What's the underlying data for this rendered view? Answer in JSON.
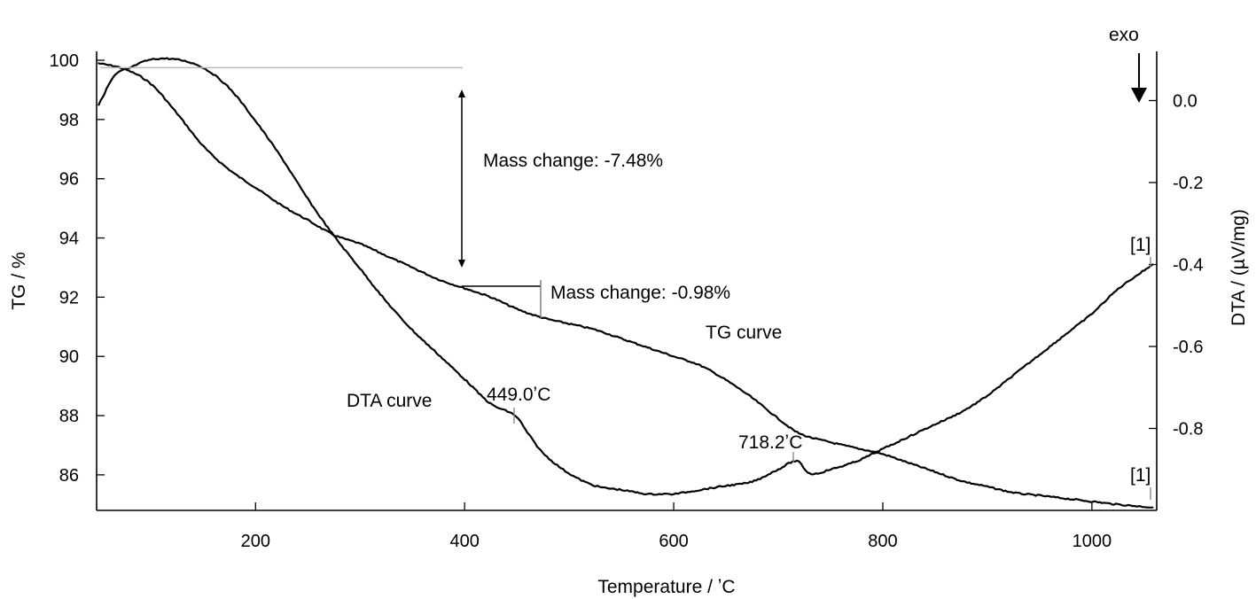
{
  "chart_data": {
    "type": "line",
    "title": "",
    "xlabel": "Temperature / ʼC",
    "ylabel": "TG / %",
    "y2label": "DTA / (µV/mg)",
    "xlim": [
      48,
      1062
    ],
    "ylim": [
      84.8,
      100.3
    ],
    "y2lim": [
      -1.0,
      0.12
    ],
    "x_ticks": [
      200,
      400,
      600,
      800,
      1000
    ],
    "y_ticks": [
      86,
      88,
      90,
      92,
      94,
      96,
      98,
      100
    ],
    "y2_ticks": [
      0.0,
      -0.2,
      -0.4,
      -0.6,
      -0.8
    ],
    "x_tick_labels": [
      "200",
      "400",
      "600",
      "800",
      "1000"
    ],
    "y_tick_labels": [
      "86",
      "88",
      "90",
      "92",
      "94",
      "96",
      "98",
      "100"
    ],
    "y2_tick_labels": [
      "0.0",
      "-0.2",
      "-0.4",
      "-0.6",
      "-0.8"
    ],
    "grid": false,
    "series": [
      {
        "name": "TG curve",
        "axis": "left",
        "x": [
          50,
          75,
          100,
          125,
          150,
          175,
          200,
          225,
          250,
          275,
          300,
          325,
          350,
          375,
          400,
          425,
          450,
          475,
          500,
          525,
          550,
          575,
          600,
          625,
          650,
          675,
          700,
          720,
          750,
          775,
          800,
          825,
          850,
          875,
          900,
          925,
          950,
          975,
          1000,
          1025,
          1058
        ],
        "values": [
          99.9,
          99.7,
          99.2,
          98.2,
          97.1,
          96.3,
          95.7,
          95.1,
          94.6,
          94.1,
          93.8,
          93.4,
          93.0,
          92.6,
          92.3,
          92.0,
          91.6,
          91.3,
          91.1,
          90.9,
          90.6,
          90.3,
          90.0,
          89.7,
          89.2,
          88.6,
          87.9,
          87.4,
          87.1,
          86.9,
          86.7,
          86.4,
          86.1,
          85.8,
          85.6,
          85.4,
          85.3,
          85.2,
          85.1,
          85.0,
          84.9
        ]
      },
      {
        "name": "DTA curve",
        "axis": "right",
        "x": [
          50,
          65,
          80,
          100,
          125,
          150,
          175,
          200,
          225,
          250,
          275,
          300,
          325,
          350,
          375,
          400,
          425,
          449,
          460,
          475,
          500,
          525,
          550,
          575,
          590,
          600,
          625,
          650,
          675,
          700,
          718,
          730,
          750,
          775,
          800,
          825,
          850,
          875,
          900,
          925,
          950,
          975,
          1000,
          1025,
          1058
        ],
        "values": [
          -0.01,
          0.06,
          0.08,
          0.1,
          0.1,
          0.08,
          0.03,
          -0.05,
          -0.14,
          -0.24,
          -0.33,
          -0.41,
          -0.49,
          -0.56,
          -0.62,
          -0.68,
          -0.74,
          -0.77,
          -0.81,
          -0.86,
          -0.91,
          -0.94,
          -0.95,
          -0.96,
          -0.96,
          -0.96,
          -0.95,
          -0.94,
          -0.93,
          -0.9,
          -0.88,
          -0.91,
          -0.9,
          -0.88,
          -0.85,
          -0.82,
          -0.79,
          -0.76,
          -0.72,
          -0.67,
          -0.62,
          -0.57,
          -0.52,
          -0.46,
          -0.4
        ]
      }
    ],
    "annotations": {
      "mass_change_1": "Mass change: -7.48%",
      "mass_change_2": "Mass change: -0.98%",
      "dta_peak_1": "449.0ʼC",
      "dta_peak_2": "718.2ʼC",
      "tg_curve_label": "TG curve",
      "dta_curve_label": "DTA curve",
      "exo_label": "exo",
      "marker_tg": "[1]",
      "marker_dta": "[1]"
    }
  }
}
